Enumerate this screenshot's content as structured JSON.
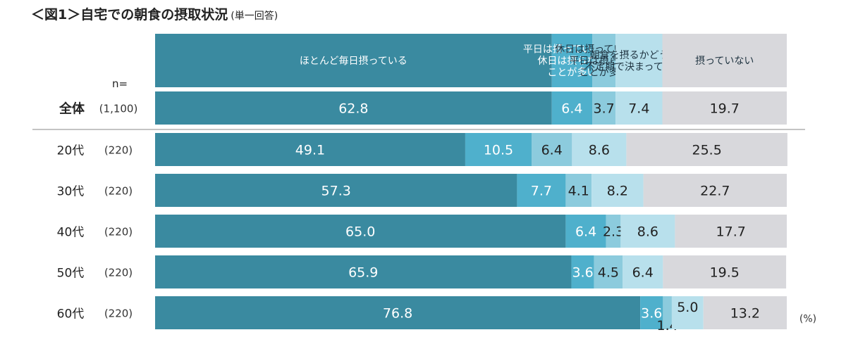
{
  "title": "＜図1＞自宅での朝食の摂取状況",
  "title_note": "(単一回答)",
  "n_label": "n=",
  "unit_label": "(%)",
  "colors": {
    "ほとんど毎日摂っている": "#3a8aa0",
    "平日は摂っているが、休日は摂らないことが多い": "#4fb0cc",
    "休日は摂っているが、平日は摂らないことが多い": "#8ccbdd",
    "朝食を摂るかどうかは不定期で決まっていない": "#b8e0ec",
    "摂っていない": "#d8d8dc"
  },
  "chart_data": {
    "type": "bar",
    "orientation": "horizontal",
    "stacked": true,
    "xlim": [
      0,
      100
    ],
    "legend_position": "top",
    "categories": [
      "全体",
      "20代",
      "30代",
      "40代",
      "50代",
      "60代"
    ],
    "n": [
      "(1,100)",
      "(220)",
      "(220)",
      "(220)",
      "(220)",
      "(220)"
    ],
    "series": [
      {
        "name": "ほとんど毎日摂っている",
        "values": [
          62.8,
          49.1,
          57.3,
          65.0,
          65.9,
          76.8
        ],
        "labels": [
          "62.8",
          "49.1",
          "57.3",
          "65.0",
          "65.9",
          "76.8"
        ]
      },
      {
        "name": "平日は摂っているが、休日は摂らないことが多い",
        "values": [
          6.4,
          10.5,
          7.7,
          6.4,
          3.6,
          3.6
        ],
        "labels": [
          "6.4",
          "10.5",
          "7.7",
          "6.4",
          "3.6",
          "3.6"
        ]
      },
      {
        "name": "休日は摂っているが、平日は摂らないことが多い",
        "values": [
          3.7,
          6.4,
          4.1,
          2.3,
          4.5,
          1.4
        ],
        "labels": [
          "3.7",
          "6.4",
          "4.1",
          "2.3",
          "4.5",
          "1.4"
        ]
      },
      {
        "name": "朝食を摂るかどうかは不定期で決まっていない",
        "values": [
          7.4,
          8.6,
          8.2,
          8.6,
          6.4,
          5.0
        ],
        "labels": [
          "7.4",
          "8.6",
          "8.2",
          "8.6",
          "6.4",
          "5.0"
        ]
      },
      {
        "name": "摂っていない",
        "values": [
          19.7,
          25.5,
          22.7,
          17.7,
          19.5,
          13.2
        ],
        "labels": [
          "19.7",
          "25.5",
          "22.7",
          "17.7",
          "19.5",
          "13.2"
        ]
      }
    ],
    "legend_lines": [
      [
        "ほとんど毎日摂っている"
      ],
      [
        "平日は摂っているが、",
        "休日は摂らない",
        "ことが多い"
      ],
      [
        "休日は摂っているが、",
        "平日は摂らない",
        "ことが多い"
      ],
      [
        "朝食を摂るかどうかは",
        "不定期で決まっていない"
      ],
      [
        "摂っていない"
      ]
    ]
  }
}
